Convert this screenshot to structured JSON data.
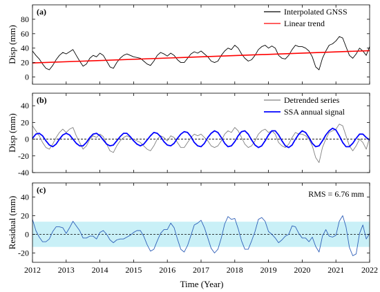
{
  "chart_data": [
    {
      "type": "line",
      "panel_label": "(a)",
      "ylabel": "Disp (mm)",
      "xlim": [
        2012,
        2022
      ],
      "ylim": [
        -10,
        100
      ],
      "yticks": [
        0,
        20,
        40,
        60,
        80
      ],
      "legend_placement": "top-right",
      "series": [
        {
          "name": "Interpolated GNSS",
          "color": "#000000",
          "x": [
            2012.0,
            2012.1,
            2012.2,
            2012.3,
            2012.4,
            2012.5,
            2012.6,
            2012.7,
            2012.8,
            2012.9,
            2013.0,
            2013.1,
            2013.2,
            2013.3,
            2013.4,
            2013.5,
            2013.6,
            2013.7,
            2013.8,
            2013.9,
            2014.0,
            2014.1,
            2014.2,
            2014.3,
            2014.4,
            2014.5,
            2014.6,
            2014.7,
            2014.8,
            2014.9,
            2015.0,
            2015.1,
            2015.2,
            2015.3,
            2015.4,
            2015.5,
            2015.6,
            2015.7,
            2015.8,
            2015.9,
            2016.0,
            2016.1,
            2016.2,
            2016.3,
            2016.4,
            2016.5,
            2016.6,
            2016.7,
            2016.8,
            2016.9,
            2017.0,
            2017.1,
            2017.2,
            2017.3,
            2017.4,
            2017.5,
            2017.6,
            2017.7,
            2017.8,
            2017.9,
            2018.0,
            2018.1,
            2018.2,
            2018.3,
            2018.4,
            2018.5,
            2018.6,
            2018.7,
            2018.8,
            2018.9,
            2019.0,
            2019.1,
            2019.2,
            2019.3,
            2019.4,
            2019.5,
            2019.6,
            2019.7,
            2019.8,
            2019.9,
            2020.0,
            2020.1,
            2020.2,
            2020.3,
            2020.4,
            2020.5,
            2020.6,
            2020.7,
            2020.8,
            2020.9,
            2021.0,
            2021.1,
            2021.2,
            2021.3,
            2021.4,
            2021.5,
            2021.6,
            2021.7,
            2021.8,
            2021.9,
            2022.0
          ],
          "y": [
            36,
            30,
            25,
            18,
            12,
            10,
            16,
            24,
            30,
            34,
            32,
            35,
            38,
            30,
            22,
            15,
            18,
            26,
            30,
            28,
            33,
            30,
            22,
            14,
            12,
            20,
            26,
            30,
            32,
            30,
            28,
            27,
            26,
            22,
            18,
            16,
            22,
            30,
            34,
            32,
            29,
            33,
            30,
            24,
            20,
            20,
            26,
            32,
            35,
            33,
            36,
            32,
            28,
            22,
            20,
            22,
            30,
            36,
            40,
            38,
            44,
            40,
            32,
            26,
            22,
            24,
            30,
            38,
            42,
            44,
            40,
            43,
            40,
            30,
            26,
            25,
            30,
            38,
            44,
            42,
            42,
            40,
            36,
            28,
            14,
            10,
            26,
            36,
            44,
            46,
            50,
            56,
            54,
            42,
            30,
            26,
            32,
            40,
            36,
            30,
            42
          ]
        },
        {
          "name": "Linear trend",
          "color": "#ff0000",
          "x": [
            2012,
            2022
          ],
          "y": [
            19.5,
            36.5
          ]
        }
      ]
    },
    {
      "type": "line",
      "panel_label": "(b)",
      "ylabel": "Disp (mm)",
      "xlim": [
        2012,
        2022
      ],
      "ylim": [
        -40,
        55
      ],
      "yticks": [
        -40,
        -20,
        0,
        20,
        40
      ],
      "zero_line": true,
      "legend_placement": "top-right",
      "series": [
        {
          "name": "Detrended series",
          "color": "#808080",
          "x": [
            2012.0,
            2012.1,
            2012.2,
            2012.3,
            2012.4,
            2012.5,
            2012.6,
            2012.7,
            2012.8,
            2012.9,
            2013.0,
            2013.1,
            2013.2,
            2013.3,
            2013.4,
            2013.5,
            2013.6,
            2013.7,
            2013.8,
            2013.9,
            2014.0,
            2014.1,
            2014.2,
            2014.3,
            2014.4,
            2014.5,
            2014.6,
            2014.7,
            2014.8,
            2014.9,
            2015.0,
            2015.1,
            2015.2,
            2015.3,
            2015.4,
            2015.5,
            2015.6,
            2015.7,
            2015.8,
            2015.9,
            2016.0,
            2016.1,
            2016.2,
            2016.3,
            2016.4,
            2016.5,
            2016.6,
            2016.7,
            2016.8,
            2016.9,
            2017.0,
            2017.1,
            2017.2,
            2017.3,
            2017.4,
            2017.5,
            2017.6,
            2017.7,
            2017.8,
            2017.9,
            2018.0,
            2018.1,
            2018.2,
            2018.3,
            2018.4,
            2018.5,
            2018.6,
            2018.7,
            2018.8,
            2018.9,
            2019.0,
            2019.1,
            2019.2,
            2019.3,
            2019.4,
            2019.5,
            2019.6,
            2019.7,
            2019.8,
            2019.9,
            2020.0,
            2020.1,
            2020.2,
            2020.3,
            2020.4,
            2020.5,
            2020.6,
            2020.7,
            2020.8,
            2020.9,
            2021.0,
            2021.1,
            2021.2,
            2021.3,
            2021.4,
            2021.5,
            2021.6,
            2021.7,
            2021.8,
            2021.9,
            2022.0
          ],
          "y": [
            16,
            10,
            4,
            -4,
            -10,
            -12,
            -6,
            2,
            8,
            12,
            8,
            12,
            14,
            4,
            -4,
            -12,
            -8,
            0,
            4,
            2,
            6,
            3,
            -6,
            -14,
            -16,
            -8,
            -2,
            2,
            4,
            2,
            0,
            -2,
            -4,
            -8,
            -12,
            -14,
            -8,
            0,
            4,
            2,
            -2,
            4,
            2,
            -4,
            -10,
            -10,
            -4,
            2,
            6,
            4,
            6,
            2,
            -2,
            -8,
            -10,
            -8,
            -2,
            6,
            10,
            8,
            14,
            10,
            2,
            -6,
            -10,
            -8,
            -2,
            6,
            10,
            12,
            8,
            10,
            6,
            -4,
            -8,
            -10,
            -6,
            2,
            8,
            6,
            6,
            4,
            0,
            -8,
            -22,
            -28,
            -10,
            0,
            8,
            10,
            12,
            18,
            16,
            4,
            -8,
            -14,
            -8,
            0,
            -4,
            -12,
            2
          ]
        },
        {
          "name": "SSA annual signal",
          "color": "#0000ff",
          "x": [
            2012.0,
            2012.1,
            2012.2,
            2012.3,
            2012.4,
            2012.5,
            2012.6,
            2012.7,
            2012.8,
            2012.9,
            2013.0,
            2013.1,
            2013.2,
            2013.3,
            2013.4,
            2013.5,
            2013.6,
            2013.7,
            2013.8,
            2013.9,
            2014.0,
            2014.1,
            2014.2,
            2014.3,
            2014.4,
            2014.5,
            2014.6,
            2014.7,
            2014.8,
            2014.9,
            2015.0,
            2015.1,
            2015.2,
            2015.3,
            2015.4,
            2015.5,
            2015.6,
            2015.7,
            2015.8,
            2015.9,
            2016.0,
            2016.1,
            2016.2,
            2016.3,
            2016.4,
            2016.5,
            2016.6,
            2016.7,
            2016.8,
            2016.9,
            2017.0,
            2017.1,
            2017.2,
            2017.3,
            2017.4,
            2017.5,
            2017.6,
            2017.7,
            2017.8,
            2017.9,
            2018.0,
            2018.1,
            2018.2,
            2018.3,
            2018.4,
            2018.5,
            2018.6,
            2018.7,
            2018.8,
            2018.9,
            2019.0,
            2019.1,
            2019.2,
            2019.3,
            2019.4,
            2019.5,
            2019.6,
            2019.7,
            2019.8,
            2019.9,
            2020.0,
            2020.1,
            2020.2,
            2020.3,
            2020.4,
            2020.5,
            2020.6,
            2020.7,
            2020.8,
            2020.9,
            2021.0,
            2021.1,
            2021.2,
            2021.3,
            2021.4,
            2021.5,
            2021.6,
            2021.7,
            2021.8,
            2021.9,
            2022.0
          ],
          "y": [
            1,
            6,
            7,
            4,
            -2,
            -7,
            -9,
            -6,
            0,
            5,
            7,
            5,
            0,
            -5,
            -8,
            -8,
            -4,
            2,
            6,
            7,
            4,
            -1,
            -6,
            -8,
            -7,
            -2,
            3,
            7,
            7,
            3,
            -2,
            -6,
            -8,
            -6,
            -1,
            4,
            8,
            7,
            3,
            -3,
            -7,
            -8,
            -5,
            1,
            6,
            9,
            8,
            3,
            -4,
            -8,
            -9,
            -5,
            2,
            7,
            10,
            8,
            2,
            -5,
            -9,
            -8,
            -3,
            4,
            9,
            10,
            6,
            -1,
            -7,
            -10,
            -8,
            -2,
            5,
            10,
            10,
            5,
            -2,
            -8,
            -10,
            -7,
            0,
            6,
            10,
            8,
            2,
            -5,
            -9,
            -8,
            -2,
            5,
            10,
            13,
            11,
            4,
            -4,
            -9,
            -9,
            -5,
            1,
            6,
            6,
            2,
            -1
          ]
        }
      ]
    },
    {
      "type": "line",
      "panel_label": "(c)",
      "ylabel": "Residual (mm)",
      "xlabel": "Time (Year)",
      "xlim": [
        2012,
        2022
      ],
      "ylim": [
        -30,
        55
      ],
      "yticks": [
        -20,
        0,
        20,
        40
      ],
      "xticks": [
        2012,
        2013,
        2014,
        2015,
        2016,
        2017,
        2018,
        2019,
        2020,
        2021,
        2022
      ],
      "zero_line": true,
      "band": [
        -13.5,
        13.5
      ],
      "band_color": "#c9f0f7",
      "annotation": "RMS = 6.76 mm",
      "annotation_placement": "top-right",
      "series": [
        {
          "name": "",
          "color": "#2e5fb8",
          "x": [
            2012.0,
            2012.1,
            2012.2,
            2012.3,
            2012.4,
            2012.5,
            2012.6,
            2012.7,
            2012.8,
            2012.9,
            2013.0,
            2013.1,
            2013.2,
            2013.3,
            2013.4,
            2013.5,
            2013.6,
            2013.7,
            2013.8,
            2013.9,
            2014.0,
            2014.1,
            2014.2,
            2014.3,
            2014.4,
            2014.5,
            2014.6,
            2014.7,
            2014.8,
            2014.9,
            2015.0,
            2015.1,
            2015.2,
            2015.3,
            2015.4,
            2015.5,
            2015.6,
            2015.7,
            2015.8,
            2015.9,
            2016.0,
            2016.1,
            2016.2,
            2016.3,
            2016.4,
            2016.5,
            2016.6,
            2016.7,
            2016.8,
            2016.9,
            2017.0,
            2017.1,
            2017.2,
            2017.3,
            2017.4,
            2017.5,
            2017.6,
            2017.7,
            2017.8,
            2017.9,
            2018.0,
            2018.1,
            2018.2,
            2018.3,
            2018.4,
            2018.5,
            2018.6,
            2018.7,
            2018.8,
            2018.9,
            2019.0,
            2019.1,
            2019.2,
            2019.3,
            2019.4,
            2019.5,
            2019.6,
            2019.7,
            2019.8,
            2019.9,
            2020.0,
            2020.1,
            2020.2,
            2020.3,
            2020.4,
            2020.5,
            2020.6,
            2020.7,
            2020.8,
            2020.9,
            2021.0,
            2021.1,
            2021.2,
            2021.3,
            2021.4,
            2021.5,
            2021.6,
            2021.7,
            2021.8,
            2021.9,
            2022.0
          ],
          "y": [
            16,
            4,
            -3,
            -8,
            -8,
            -5,
            3,
            8,
            8,
            7,
            1,
            7,
            14,
            9,
            4,
            -4,
            -4,
            -2,
            -2,
            -5,
            2,
            4,
            0,
            -6,
            -9,
            -6,
            -5,
            -5,
            -3,
            -1,
            2,
            4,
            4,
            -2,
            -11,
            -18,
            -16,
            -7,
            1,
            5,
            5,
            12,
            7,
            -5,
            -16,
            -19,
            -12,
            -1,
            10,
            12,
            15,
            7,
            -4,
            -15,
            -20,
            -16,
            -4,
            11,
            19,
            16,
            17,
            6,
            -7,
            -16,
            -16,
            -7,
            3,
            16,
            18,
            14,
            3,
            0,
            -4,
            -9,
            -6,
            -2,
            0,
            9,
            8,
            1,
            -4,
            -4,
            -8,
            -3,
            -13,
            -19,
            -2,
            5,
            -2,
            -3,
            -1,
            14,
            20,
            8,
            -14,
            -23,
            -21,
            1,
            10,
            -5,
            1
          ]
        }
      ]
    }
  ]
}
